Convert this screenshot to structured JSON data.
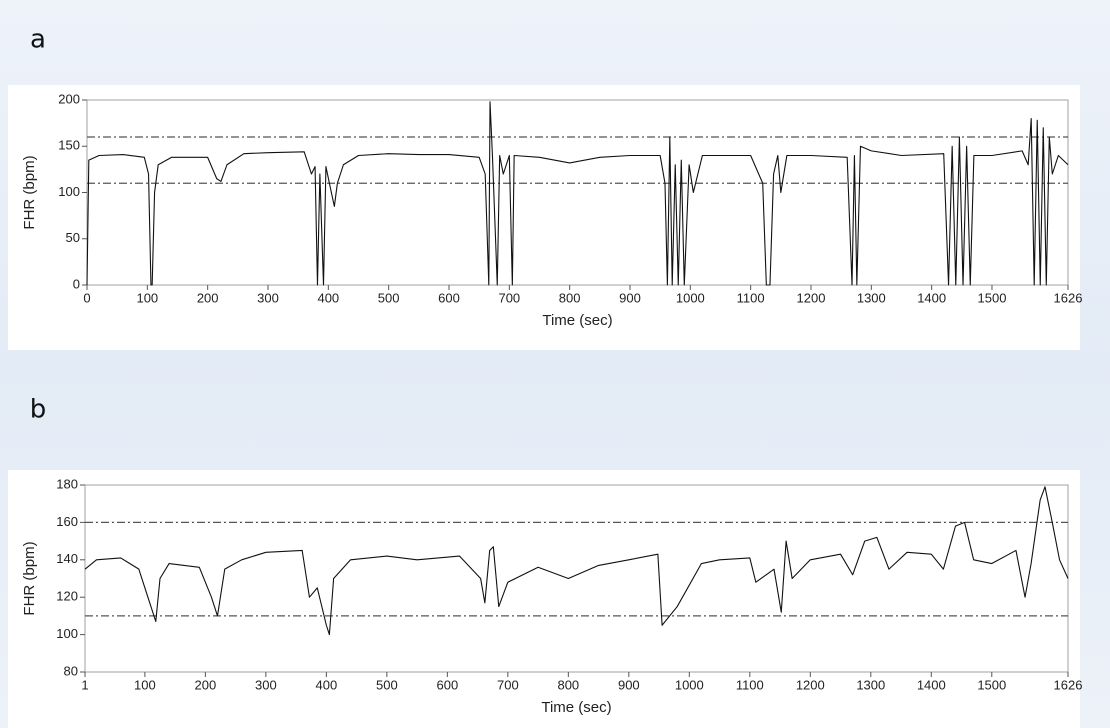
{
  "chart_data": [
    {
      "type": "line",
      "label": "a",
      "xlabel": "Time (sec)",
      "ylabel": "FHR (bpm)",
      "xlim": [
        0,
        1626
      ],
      "ylim": [
        0,
        200
      ],
      "xticks": [
        0,
        100,
        200,
        300,
        400,
        500,
        600,
        700,
        800,
        900,
        1000,
        1100,
        1200,
        1300,
        1400,
        1500,
        1626
      ],
      "yticks": [
        0,
        50,
        100,
        150,
        200
      ],
      "reference_lines": [
        110,
        160
      ],
      "x": [
        0,
        3,
        20,
        60,
        95,
        102,
        106,
        108,
        112,
        118,
        140,
        200,
        215,
        222,
        232,
        260,
        300,
        360,
        372,
        378,
        382,
        386,
        392,
        396,
        405,
        410,
        415,
        425,
        450,
        500,
        550,
        600,
        650,
        660,
        666,
        668,
        672,
        680,
        684,
        690,
        700,
        705,
        708,
        750,
        800,
        850,
        900,
        950,
        958,
        962,
        966,
        970,
        975,
        980,
        985,
        990,
        998,
        1005,
        1020,
        1100,
        1120,
        1126,
        1132,
        1138,
        1145,
        1150,
        1160,
        1200,
        1260,
        1268,
        1272,
        1276,
        1282,
        1300,
        1350,
        1420,
        1428,
        1434,
        1440,
        1446,
        1452,
        1458,
        1464,
        1470,
        1500,
        1550,
        1560,
        1565,
        1570,
        1575,
        1580,
        1585,
        1590,
        1595,
        1600,
        1610,
        1626
      ],
      "series": [
        {
          "color": "#111111",
          "values": [
            0,
            135,
            140,
            141,
            138,
            120,
            0,
            0,
            100,
            130,
            138,
            138,
            115,
            112,
            130,
            142,
            143,
            144,
            120,
            128,
            0,
            120,
            0,
            128,
            100,
            85,
            110,
            130,
            140,
            142,
            141,
            141,
            138,
            120,
            0,
            198,
            140,
            0,
            140,
            120,
            140,
            0,
            140,
            138,
            132,
            138,
            140,
            140,
            110,
            0,
            160,
            0,
            130,
            0,
            135,
            0,
            130,
            100,
            140,
            140,
            110,
            0,
            0,
            120,
            140,
            100,
            140,
            140,
            138,
            0,
            140,
            0,
            150,
            145,
            140,
            142,
            0,
            150,
            0,
            160,
            0,
            150,
            0,
            140,
            140,
            145,
            130,
            180,
            0,
            178,
            0,
            170,
            0,
            160,
            120,
            140,
            130
          ]
        }
      ]
    },
    {
      "type": "line",
      "label": "b",
      "xlabel": "Time (sec)",
      "ylabel": "FHR (bpm)",
      "xlim": [
        1,
        1626
      ],
      "ylim": [
        80,
        180
      ],
      "xticks": [
        1,
        100,
        200,
        300,
        400,
        500,
        600,
        700,
        800,
        900,
        1000,
        1100,
        1200,
        1300,
        1400,
        1500,
        1626
      ],
      "yticks": [
        80,
        100,
        120,
        140,
        160,
        180
      ],
      "reference_lines": [
        110,
        160
      ],
      "x": [
        1,
        20,
        60,
        90,
        110,
        118,
        125,
        140,
        190,
        210,
        220,
        232,
        260,
        300,
        360,
        372,
        385,
        400,
        405,
        412,
        440,
        500,
        550,
        620,
        655,
        662,
        670,
        676,
        685,
        700,
        750,
        800,
        850,
        900,
        948,
        955,
        980,
        1020,
        1050,
        1100,
        1110,
        1140,
        1152,
        1160,
        1170,
        1200,
        1250,
        1270,
        1290,
        1310,
        1330,
        1360,
        1400,
        1420,
        1440,
        1455,
        1470,
        1500,
        1540,
        1555,
        1565,
        1580,
        1588,
        1600,
        1612,
        1626
      ],
      "series": [
        {
          "color": "#111111",
          "values": [
            135,
            140,
            141,
            135,
            115,
            107,
            130,
            138,
            136,
            120,
            110,
            135,
            140,
            144,
            145,
            120,
            125,
            105,
            100,
            130,
            140,
            142,
            140,
            142,
            130,
            117,
            145,
            147,
            115,
            128,
            136,
            130,
            137,
            140,
            143,
            105,
            115,
            138,
            140,
            141,
            128,
            135,
            112,
            150,
            130,
            140,
            143,
            132,
            150,
            152,
            135,
            144,
            143,
            135,
            158,
            160,
            140,
            138,
            145,
            120,
            138,
            172,
            179,
            160,
            140,
            130
          ]
        }
      ]
    }
  ]
}
